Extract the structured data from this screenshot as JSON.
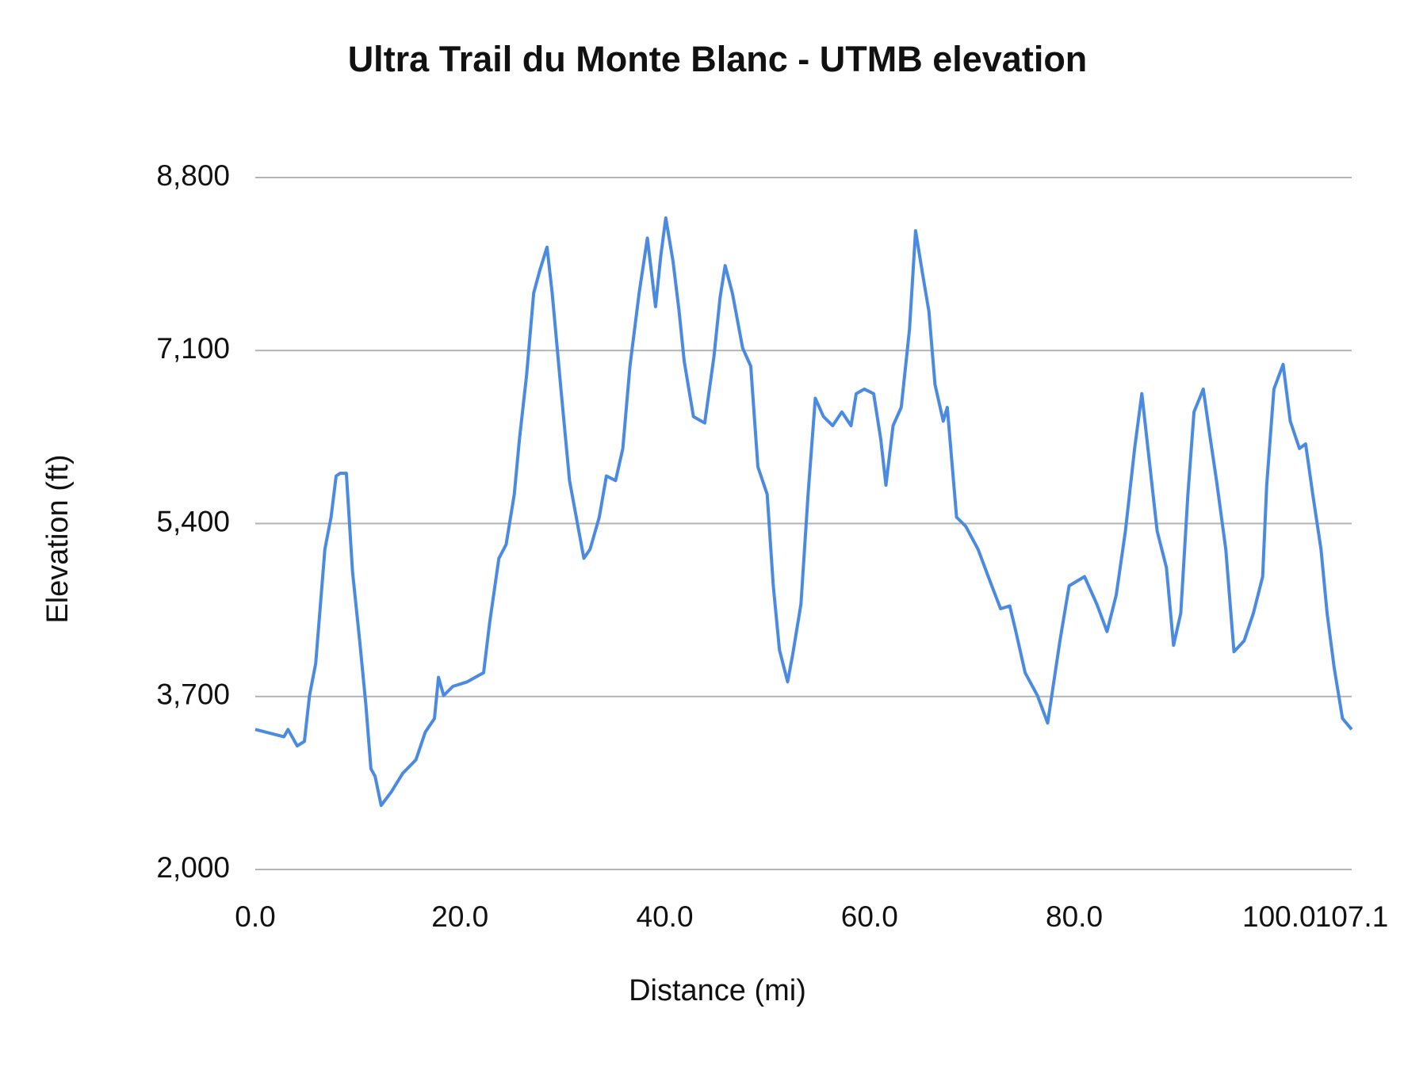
{
  "chart_data": {
    "type": "line",
    "title": "Ultra Trail du Monte Blanc - UTMB elevation",
    "x_label": "Distance (mi)",
    "y_label": "Elevation (ft)",
    "color": "#4a8ae0",
    "grid": true,
    "xlim": [
      0,
      107.1
    ],
    "ylim": [
      2000,
      8800
    ],
    "xticks": [
      {
        "value": 0,
        "label": "0.0"
      },
      {
        "value": 20,
        "label": "20.0"
      },
      {
        "value": 40,
        "label": "40.0"
      },
      {
        "value": 60,
        "label": "60.0"
      },
      {
        "value": 80,
        "label": "80.0"
      },
      {
        "value": 100,
        "label": "100.0"
      },
      107.1
    ],
    "yticks": [
      {
        "value": 2000,
        "label": "2,000"
      },
      {
        "value": 3700,
        "label": "3,700"
      },
      {
        "value": 5400,
        "label": "5,400"
      },
      {
        "value": 7100,
        "label": "7,100"
      },
      {
        "value": 8800,
        "label": "8,800"
      }
    ],
    "x": [
      0,
      2.8,
      3.2,
      4.1,
      4.8,
      5.3,
      5.9,
      6.8,
      7.4,
      7.9,
      8.3,
      8.9,
      9.5,
      10.2,
      10.8,
      11.3,
      11.7,
      12.3,
      13.3,
      14.4,
      15.7,
      16.6,
      17.5,
      17.9,
      18.4,
      19.3,
      20.7,
      22.3,
      22.9,
      23.8,
      24.5,
      25.3,
      25.8,
      26.5,
      27.2,
      27.8,
      28.5,
      29.0,
      29.9,
      30.7,
      31.6,
      32.1,
      32.7,
      33.6,
      34.3,
      35.2,
      35.9,
      36.6,
      37.5,
      38.3,
      39.1,
      39.6,
      40.1,
      40.8,
      41.4,
      41.9,
      42.8,
      43.9,
      44.8,
      45.4,
      45.9,
      46.6,
      47.6,
      48.4,
      49.1,
      50.0,
      50.6,
      51.2,
      52.0,
      52.5,
      53.3,
      54.0,
      54.7,
      55.5,
      56.4,
      57.3,
      58.2,
      58.7,
      59.5,
      60.4,
      61.1,
      61.6,
      62.3,
      63.1,
      63.9,
      64.5,
      65.2,
      65.8,
      66.4,
      67.2,
      67.6,
      68.5,
      69.4,
      70.6,
      71.6,
      72.8,
      73.7,
      74.3,
      75.2,
      76.4,
      77.4,
      78.6,
      79.5,
      81.0,
      82.2,
      83.2,
      84.1,
      85.0,
      85.9,
      86.6,
      87.2,
      88.1,
      89.0,
      89.7,
      90.4,
      91.1,
      91.7,
      92.6,
      93.3,
      93.9,
      94.8,
      95.6,
      96.6,
      97.5,
      98.4,
      98.8,
      99.5,
      100.4,
      101.1,
      102.0,
      102.6,
      103.3,
      104.1,
      104.7,
      105.4,
      106.2,
      107.1
    ],
    "values": [
      3376,
      3304,
      3376,
      3214,
      3259,
      3709,
      4023,
      5147,
      5462,
      5867,
      5894,
      5894,
      4923,
      4248,
      3619,
      2989,
      2917,
      2629,
      2764,
      2944,
      3079,
      3349,
      3484,
      3888,
      3709,
      3799,
      3844,
      3933,
      4428,
      5058,
      5193,
      5687,
      6227,
      6856,
      7665,
      7890,
      8115,
      7665,
      6676,
      5822,
      5327,
      5058,
      5147,
      5462,
      5867,
      5822,
      6137,
      6946,
      7665,
      8205,
      7531,
      8025,
      8403,
      7980,
      7486,
      6991,
      6451,
      6388,
      7036,
      7621,
      7935,
      7665,
      7126,
      6946,
      5957,
      5687,
      4788,
      4158,
      3844,
      4113,
      4608,
      5687,
      6631,
      6451,
      6361,
      6496,
      6361,
      6676,
      6721,
      6676,
      6227,
      5777,
      6361,
      6541,
      7306,
      8277,
      7845,
      7486,
      6766,
      6406,
      6541,
      5462,
      5372,
      5147,
      4878,
      4563,
      4590,
      4338,
      3933,
      3709,
      3439,
      4248,
      4788,
      4878,
      4608,
      4338,
      4698,
      5327,
      6137,
      6676,
      6137,
      5327,
      4968,
      4203,
      4518,
      5687,
      6496,
      6721,
      6227,
      5822,
      5147,
      4140,
      4248,
      4518,
      4878,
      5777,
      6721,
      6964,
      6406,
      6137,
      6182,
      5687,
      5147,
      4518,
      3978,
      3484,
      3376
    ]
  }
}
